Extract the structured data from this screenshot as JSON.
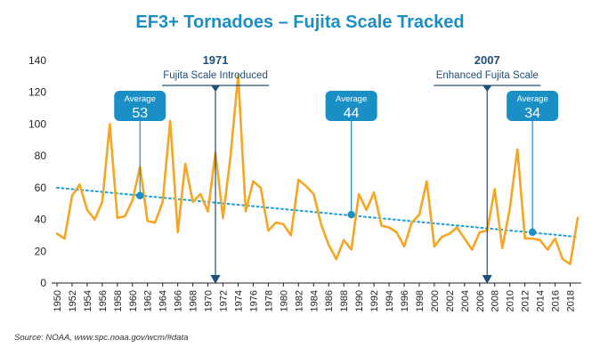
{
  "colors": {
    "title": "#1a8fc5",
    "line": "#f5a623",
    "trend": "#1a9fd6",
    "marker": "#1f4e79",
    "badge": "#1a8fc5",
    "text": "#222222"
  },
  "source_note": "Source: NOAA, www.spc.noaa.gov/wcm/#data",
  "chart_data": {
    "type": "line",
    "title": "EF3+ Tornadoes – Fujita Scale Tracked",
    "xlabel": "",
    "ylabel": "",
    "xlim": [
      1950,
      2019
    ],
    "ylim": [
      0,
      140
    ],
    "yticks": [
      0,
      20,
      40,
      60,
      80,
      100,
      120,
      140
    ],
    "xtick_labels": [
      "1950",
      "1952",
      "1954",
      "1956",
      "1958",
      "1960",
      "1962",
      "1964",
      "1966",
      "1968",
      "1970",
      "1972",
      "1974",
      "1976",
      "1978",
      "1980",
      "1982",
      "1984",
      "1986",
      "1988",
      "1990",
      "1992",
      "1994",
      "1996",
      "1998",
      "2000",
      "2002",
      "2004",
      "2006",
      "2008",
      "2010",
      "2012",
      "2014",
      "2016",
      "2018"
    ],
    "grid": false,
    "legend": "none",
    "series": [
      {
        "x": [
          1950,
          1951,
          1952,
          1953,
          1954,
          1955,
          1956,
          1957,
          1958,
          1959,
          1960,
          1961,
          1962,
          1963,
          1964,
          1965,
          1966,
          1967,
          1968,
          1969,
          1970,
          1971,
          1972,
          1973,
          1974,
          1975,
          1976,
          1977,
          1978,
          1979,
          1980,
          1981,
          1982,
          1983,
          1984,
          1985,
          1986,
          1987,
          1988,
          1989,
          1990,
          1991,
          1992,
          1993,
          1994,
          1995,
          1996,
          1997,
          1998,
          1999,
          2000,
          2001,
          2002,
          2003,
          2004,
          2005,
          2006,
          2007,
          2008,
          2009,
          2010,
          2011,
          2012,
          2013,
          2014,
          2015,
          2016,
          2017,
          2018,
          2019
        ],
        "values": [
          31,
          28,
          55,
          62,
          46,
          40,
          51,
          100,
          41,
          42,
          52,
          73,
          39,
          38,
          51,
          102,
          32,
          75,
          51,
          56,
          45,
          82,
          41,
          80,
          131,
          45,
          64,
          60,
          33,
          38,
          37,
          30,
          65,
          61,
          56,
          37,
          24,
          15,
          27,
          21,
          56,
          46,
          57,
          36,
          35,
          32,
          23,
          38,
          43,
          64,
          23,
          29,
          31,
          35,
          28,
          21,
          32,
          33,
          59,
          22,
          47,
          84,
          28,
          28,
          27,
          21,
          28,
          15,
          12,
          41
        ]
      }
    ],
    "trendline": {
      "x": [
        1950,
        2019
      ],
      "values": [
        60,
        29
      ]
    },
    "annotations": [
      {
        "type": "average",
        "label": "Average",
        "value_text": "53",
        "x": 1961,
        "y": 55
      },
      {
        "type": "average",
        "label": "Average",
        "value_text": "44",
        "x": 1989,
        "y": 43
      },
      {
        "type": "average",
        "label": "Average",
        "value_text": "34",
        "x": 2013,
        "y": 32
      },
      {
        "type": "event",
        "year_text": "1971",
        "caption": "Fujita Scale Introduced",
        "x": 1971
      },
      {
        "type": "event",
        "year_text": "2007",
        "caption": "Enhanced Fujita Scale",
        "x": 2007
      }
    ]
  }
}
